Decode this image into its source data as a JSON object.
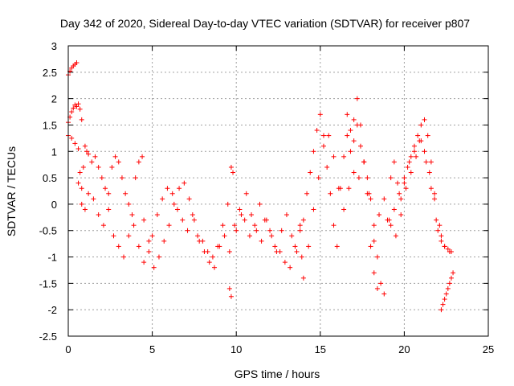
{
  "chart_data": {
    "type": "scatter",
    "title": "Day 342 of 2020, Sidereal Day-to-day VTEC variation (SDTVAR) for receiver p807",
    "xlabel": "GPS time / hours",
    "ylabel": "SDTVAR / TECUs",
    "xlim": [
      0,
      25
    ],
    "ylim": [
      -2.5,
      3
    ],
    "xticks": [
      0,
      5,
      10,
      15,
      20,
      25
    ],
    "xtick_labels": [
      "0",
      "5",
      "10",
      "15",
      "20",
      "25"
    ],
    "yticks": [
      -2.5,
      -2,
      -1.5,
      -1,
      -0.5,
      0,
      0.5,
      1,
      1.5,
      2,
      2.5,
      3
    ],
    "ytick_labels": [
      "-2.5",
      "-2",
      "-1.5",
      "-1",
      "-0.5",
      "0",
      "0.5",
      "1",
      "1.5",
      "2",
      "2.5",
      "3"
    ],
    "grid": true,
    "marker": "+",
    "color": "#ff0000",
    "series": [
      {
        "name": "p807",
        "x": [
          0.0,
          0.1,
          0.2,
          0.3,
          0.4,
          0.5,
          0.0,
          0.1,
          0.2,
          0.3,
          0.4,
          0.5,
          0.6,
          0.7,
          0.8,
          0.0,
          0.2,
          0.4,
          0.6,
          0.7,
          0.8,
          0.9,
          1.0,
          1.1,
          1.2,
          1.4,
          1.6,
          1.8,
          2.0,
          2.2,
          2.4,
          2.6,
          2.8,
          3.0,
          3.2,
          3.4,
          3.6,
          3.8,
          4.0,
          4.2,
          4.4,
          0.6,
          0.8,
          1.0,
          1.2,
          1.5,
          1.8,
          2.1,
          2.4,
          2.7,
          3.0,
          3.3,
          3.6,
          3.9,
          4.2,
          4.5,
          4.8,
          5.0,
          5.3,
          5.6,
          5.9,
          6.2,
          6.5,
          6.8,
          7.1,
          7.4,
          7.7,
          8.0,
          8.3,
          8.6,
          8.9,
          9.2,
          9.5,
          4.5,
          4.8,
          5.1,
          5.4,
          5.7,
          6.0,
          6.3,
          6.6,
          6.9,
          7.2,
          7.5,
          7.8,
          8.1,
          8.4,
          8.7,
          9.0,
          9.3,
          9.6,
          9.9,
          10.2,
          10.5,
          10.8,
          11.1,
          11.4,
          11.7,
          12.0,
          12.3,
          12.6,
          12.9,
          13.2,
          13.5,
          13.8,
          9.7,
          9.8,
          9.6,
          9.7,
          10.0,
          10.3,
          10.6,
          10.9,
          11.2,
          11.5,
          11.8,
          12.1,
          12.4,
          12.7,
          13.0,
          13.3,
          13.6,
          13.9,
          13.8,
          14.0,
          14.2,
          14.4,
          14.6,
          14.8,
          15.0,
          15.2,
          15.4,
          15.6,
          15.8,
          16.0,
          16.2,
          16.4,
          16.6,
          16.8,
          17.0,
          17.2,
          17.4,
          17.6,
          17.8,
          18.0,
          18.2,
          18.4,
          18.6,
          18.8,
          19.0,
          19.2,
          19.4,
          19.6,
          19.8,
          20.0,
          20.2,
          20.4,
          20.6,
          20.8,
          21.0,
          21.2,
          21.4,
          21.6,
          21.8,
          22.0,
          22.2,
          22.4,
          22.6,
          22.8,
          14.0,
          14.3,
          14.6,
          14.9,
          15.2,
          15.5,
          15.8,
          16.1,
          16.4,
          16.7,
          17.0,
          17.3,
          17.6,
          17.9,
          18.2,
          18.5,
          18.8,
          19.1,
          19.4,
          19.7,
          20.0,
          20.3,
          20.6,
          20.9,
          21.2,
          21.5,
          21.8,
          22.1,
          22.4,
          22.7,
          16.6,
          16.8,
          17.0,
          17.2,
          17.4,
          17.6,
          17.8,
          18.0,
          18.2,
          18.4,
          19.2,
          19.5,
          19.8,
          20.1,
          20.4,
          20.7,
          21.0,
          21.3,
          21.6,
          21.9,
          22.2,
          22.2,
          22.3,
          22.4,
          22.5,
          22.6,
          22.7,
          22.8,
          22.9
        ],
        "y": [
          2.45,
          2.52,
          2.58,
          2.62,
          2.65,
          2.68,
          1.55,
          1.65,
          1.75,
          1.82,
          1.88,
          1.85,
          1.9,
          1.8,
          1.6,
          1.3,
          1.25,
          1.15,
          1.05,
          0.6,
          0.3,
          0.7,
          1.1,
          1.0,
          0.95,
          0.8,
          0.9,
          0.7,
          0.5,
          0.3,
          0.2,
          0.7,
          0.9,
          0.8,
          0.5,
          0.2,
          0.0,
          -0.2,
          0.5,
          0.8,
          0.9,
          0.4,
          0.0,
          -0.1,
          0.2,
          0.1,
          -0.2,
          -0.4,
          -0.1,
          -0.6,
          -0.8,
          -1.0,
          -0.6,
          -0.4,
          -0.8,
          -1.1,
          -0.9,
          -0.6,
          -0.2,
          0.1,
          0.3,
          0.2,
          -0.1,
          -0.3,
          -0.5,
          -0.2,
          -0.6,
          -0.7,
          -0.9,
          -1.0,
          -0.8,
          -0.4,
          0.0,
          -0.3,
          -0.7,
          -1.2,
          -1.0,
          -0.7,
          -0.4,
          0.0,
          0.3,
          0.4,
          0.1,
          -0.3,
          -0.7,
          -0.9,
          -1.1,
          -1.2,
          -0.8,
          -0.6,
          -0.9,
          -0.4,
          -0.1,
          -0.3,
          -0.6,
          -0.4,
          0.0,
          -0.3,
          -0.5,
          -0.8,
          -0.9,
          -1.1,
          -1.2,
          -0.8,
          -0.4,
          0.7,
          0.6,
          -1.6,
          -1.75,
          -0.5,
          -0.2,
          0.2,
          -0.2,
          -0.5,
          -0.7,
          -0.3,
          -0.6,
          -0.9,
          -0.5,
          -0.2,
          -0.6,
          -0.9,
          -1.0,
          -0.5,
          -0.3,
          0.2,
          0.6,
          1.0,
          1.4,
          1.7,
          1.3,
          0.7,
          0.2,
          -0.4,
          -0.8,
          0.3,
          0.9,
          1.3,
          1.0,
          1.6,
          2.0,
          1.5,
          0.8,
          0.5,
          0.1,
          -0.7,
          -1.0,
          -1.5,
          -1.7,
          -0.3,
          0.5,
          0.8,
          0.4,
          0.1,
          0.4,
          0.7,
          0.9,
          1.1,
          1.3,
          1.5,
          1.6,
          1.3,
          0.8,
          0.2,
          -0.5,
          -0.7,
          -0.8,
          -0.85,
          -0.9,
          -1.4,
          -0.8,
          -0.1,
          0.5,
          1.1,
          1.3,
          0.9,
          0.3,
          -0.1,
          0.3,
          0.6,
          0.5,
          0.8,
          0.2,
          -0.4,
          -0.2,
          0.1,
          -0.3,
          -0.1,
          0.2,
          0.5,
          0.8,
          1.0,
          1.2,
          1.0,
          0.6,
          0.1,
          -0.4,
          -0.8,
          -0.9,
          1.7,
          1.4,
          1.2,
          1.5,
          1.1,
          0.8,
          0.2,
          -0.8,
          -1.3,
          -1.6,
          -0.4,
          -0.6,
          -0.2,
          0.3,
          0.6,
          0.9,
          1.2,
          0.8,
          0.3,
          -0.3,
          -0.6,
          -2.0,
          -1.9,
          -1.8,
          -1.7,
          -1.6,
          -1.5,
          -1.4,
          -1.3
        ]
      }
    ]
  }
}
